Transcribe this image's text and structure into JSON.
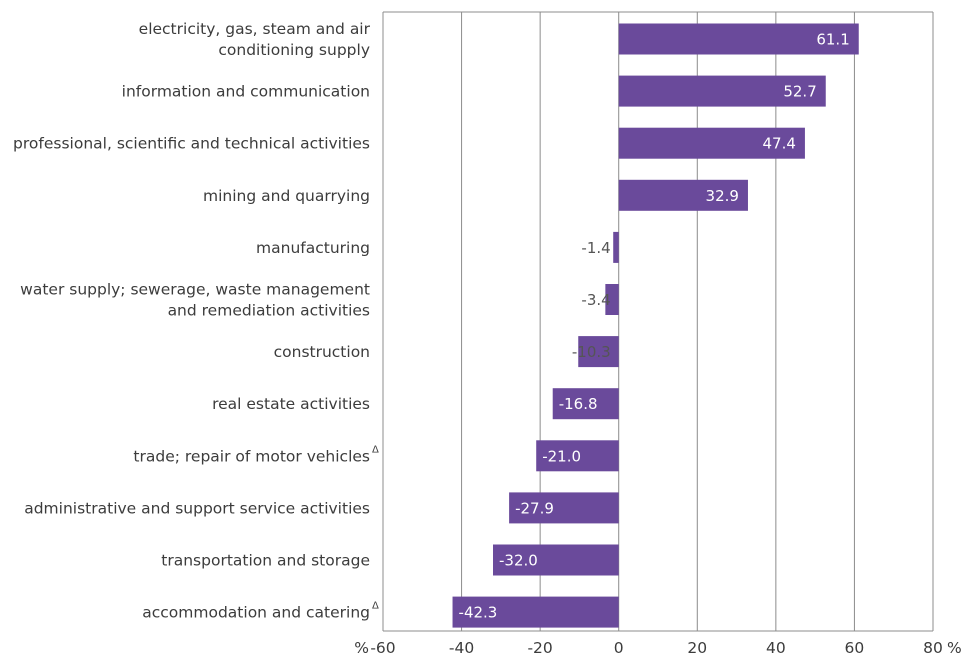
{
  "chart_data": {
    "type": "bar",
    "orientation": "horizontal",
    "categories": [
      [
        "electricity, gas, steam and air",
        "conditioning supply"
      ],
      [
        "information and communication"
      ],
      [
        "professional, scientific and technical activities"
      ],
      [
        "mining and quarrying"
      ],
      [
        "manufacturing"
      ],
      [
        "water supply; sewerage, waste management",
        "and remediation activities"
      ],
      [
        "construction"
      ],
      [
        "real estate activities"
      ],
      [
        "trade; repair of motor vehicles"
      ],
      [
        "administrative and support service activities"
      ],
      [
        "transportation and storage"
      ],
      [
        "accommodation and catering"
      ]
    ],
    "category_marks": [
      "",
      "",
      "",
      "",
      "",
      "",
      "",
      "",
      "Δ",
      "",
      "",
      "Δ"
    ],
    "values": [
      61.1,
      52.7,
      47.4,
      32.9,
      -1.4,
      -3.4,
      -10.3,
      -16.8,
      -21.0,
      -27.9,
      -32.0,
      -42.3
    ],
    "value_labels": [
      "61.1",
      "52.7",
      "47.4",
      "32.9",
      "-1.4",
      "-3.4",
      "-10.3",
      "-16.8",
      "-21.0",
      "-27.9",
      "-32.0",
      "-42.3"
    ],
    "xlim": [
      -60,
      80
    ],
    "xticks": [
      -60,
      -40,
      -20,
      0,
      20,
      40,
      60,
      80
    ],
    "xtick_labels": [
      "-60",
      "-40",
      "-20",
      "0",
      "20",
      "40",
      "60",
      "80"
    ],
    "unit_left": "%",
    "unit_right": "%",
    "grid": "vertical",
    "bar_color": "#6a4a9b",
    "grid_color": "#8c8c8c"
  }
}
